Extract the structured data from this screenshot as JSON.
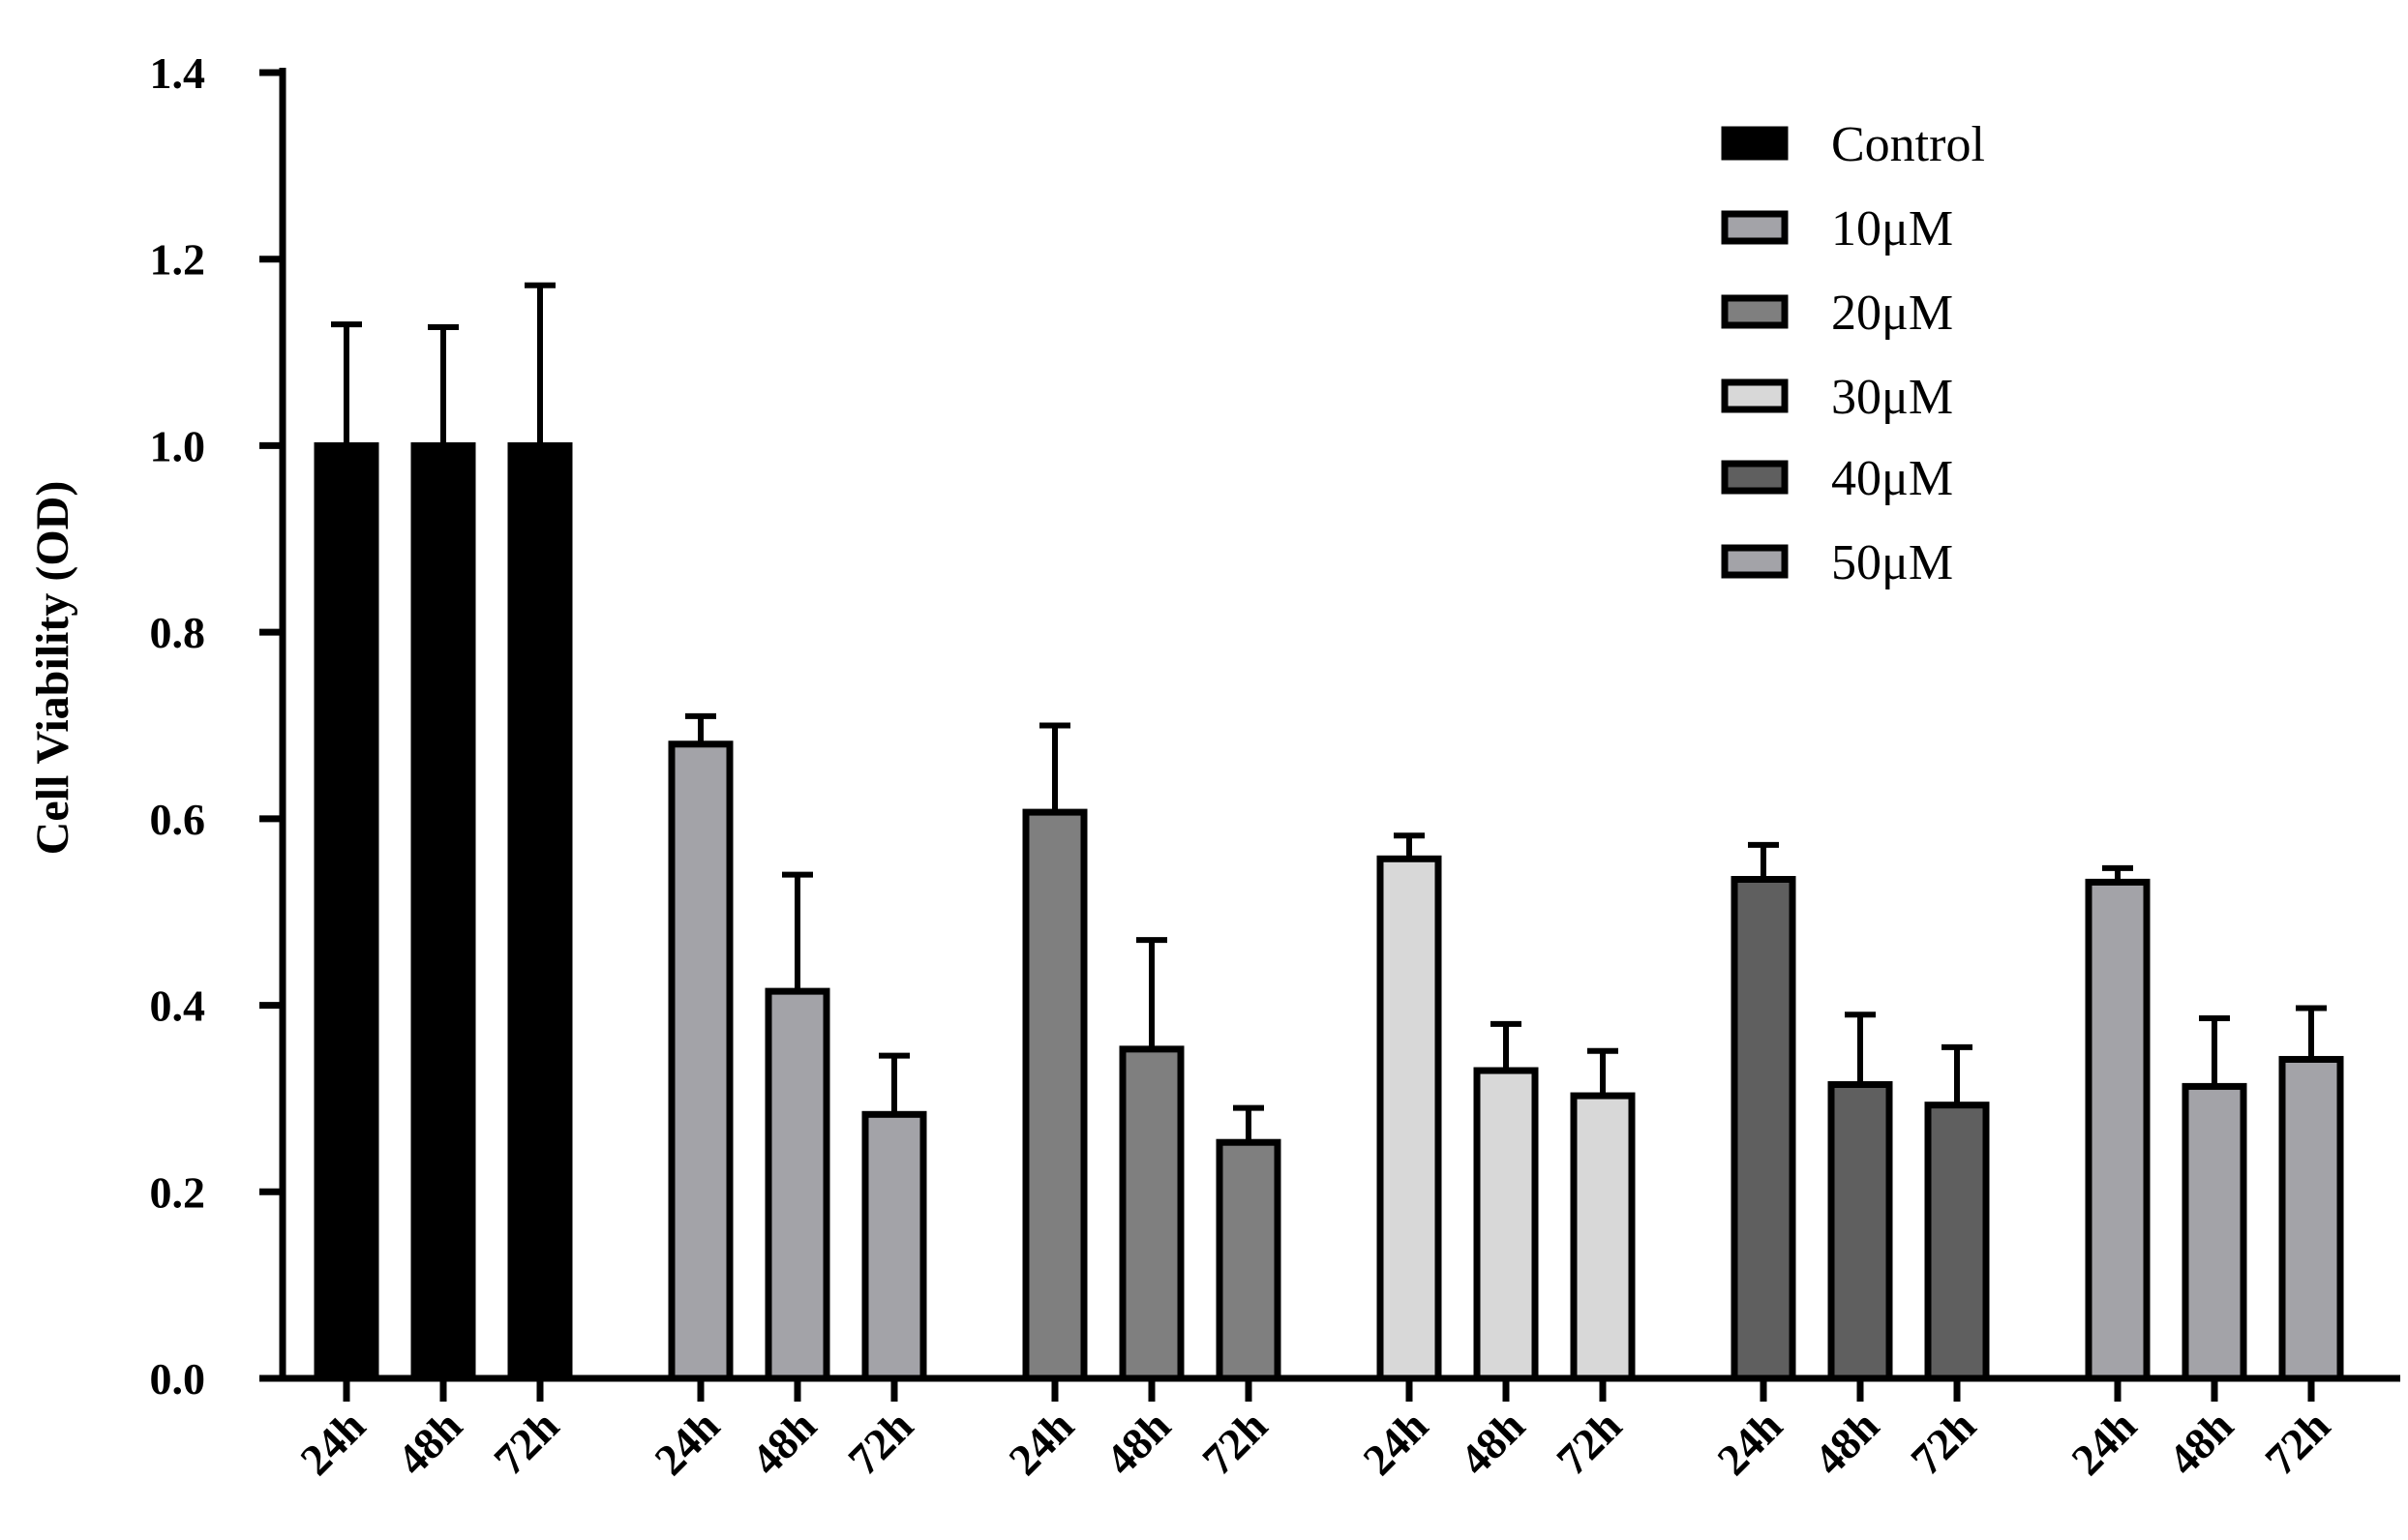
{
  "chart_data": {
    "type": "bar",
    "ylabel": "Cell Viability (OD)",
    "xlabel": "",
    "ylim": [
      0,
      1.4
    ],
    "yticks": [
      "0.0",
      "0.2",
      "0.4",
      "0.6",
      "0.8",
      "1.0",
      "1.2",
      "1.4"
    ],
    "categories": [
      "24h",
      "48h",
      "72h"
    ],
    "grid": false,
    "legend_position": "top-right",
    "series": [
      {
        "name": "Control",
        "color": "#000000",
        "values": [
          1.0,
          1.0,
          1.0
        ],
        "errors": [
          0.13,
          0.127,
          0.172
        ]
      },
      {
        "name": "10μM",
        "color": "#a3a3a8",
        "values": [
          0.68,
          0.415,
          0.283
        ],
        "errors": [
          0.03,
          0.125,
          0.063
        ]
      },
      {
        "name": "20μM",
        "color": "#7f7f7f",
        "values": [
          0.607,
          0.353,
          0.253
        ],
        "errors": [
          0.093,
          0.117,
          0.037
        ]
      },
      {
        "name": "30μM",
        "color": "#d8d8d8",
        "values": [
          0.557,
          0.33,
          0.303
        ],
        "errors": [
          0.025,
          0.05,
          0.048
        ]
      },
      {
        "name": "40μM",
        "color": "#5f5f5f",
        "values": [
          0.535,
          0.315,
          0.293
        ],
        "errors": [
          0.037,
          0.075,
          0.062
        ]
      },
      {
        "name": "50μM",
        "color": "#a3a3a8",
        "values": [
          0.532,
          0.313,
          0.342
        ],
        "errors": [
          0.015,
          0.073,
          0.055
        ]
      }
    ]
  }
}
